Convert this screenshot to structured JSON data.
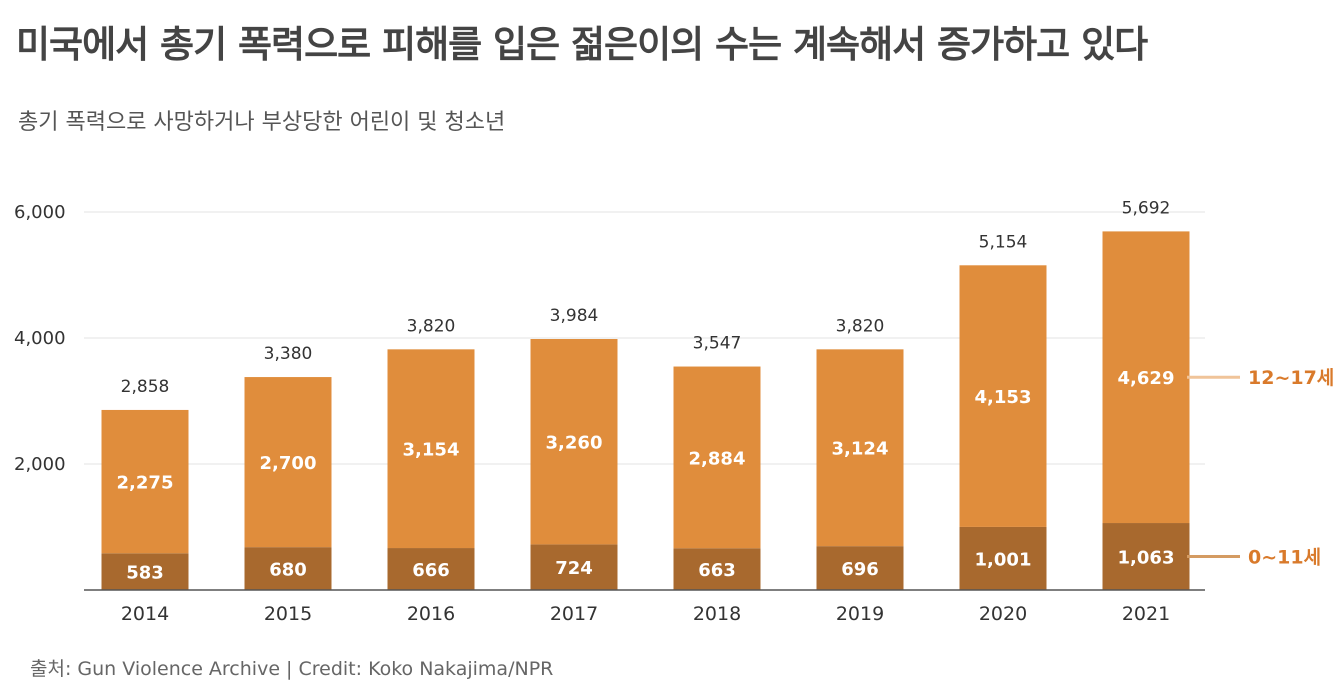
{
  "title": "미국에서 총기 폭력으로 피해를 입은 젊은이의 수는 계속해서 증가하고 있다",
  "subtitle": "총기 폭력으로 사망하거나 부상당한 어린이 및 청소년",
  "source": "출처: Gun Violence Archive | Credit: Koko Nakajima/NPR",
  "colors": {
    "top": "#e08d3c",
    "bottom": "#a8692e",
    "legend_top": "#f0c499",
    "legend_bottom": "#d49b62",
    "legend_text": "#d97a2b"
  },
  "chart_data": {
    "type": "bar",
    "stacked": true,
    "categories": [
      "2014",
      "2015",
      "2016",
      "2017",
      "2018",
      "2019",
      "2020",
      "2021"
    ],
    "series": [
      {
        "name": "0~11세",
        "values": [
          583,
          680,
          666,
          724,
          663,
          696,
          1001,
          1063
        ]
      },
      {
        "name": "12~17세",
        "values": [
          2275,
          2700,
          3154,
          3260,
          2884,
          3124,
          4153,
          4629
        ]
      }
    ],
    "totals": [
      2858,
      3380,
      3820,
      3984,
      3547,
      3820,
      5154,
      5692
    ],
    "value_labels": {
      "bottom": [
        "583",
        "680",
        "666",
        "724",
        "663",
        "696",
        "1,001",
        "1,063"
      ],
      "top": [
        "2,275",
        "2,700",
        "3,154",
        "3,260",
        "2,884",
        "3,124",
        "4,153",
        "4,629"
      ],
      "totals": [
        "2,858",
        "3,380",
        "3,820",
        "3,984",
        "3,547",
        "3,820",
        "5,154",
        "5,692"
      ]
    },
    "y_ticks": [
      2000,
      4000,
      6000
    ],
    "y_tick_labels": [
      "2,000",
      "4,000",
      "6,000"
    ],
    "ylim": [
      0,
      6000
    ],
    "grid": true,
    "legend_placement": "right"
  }
}
